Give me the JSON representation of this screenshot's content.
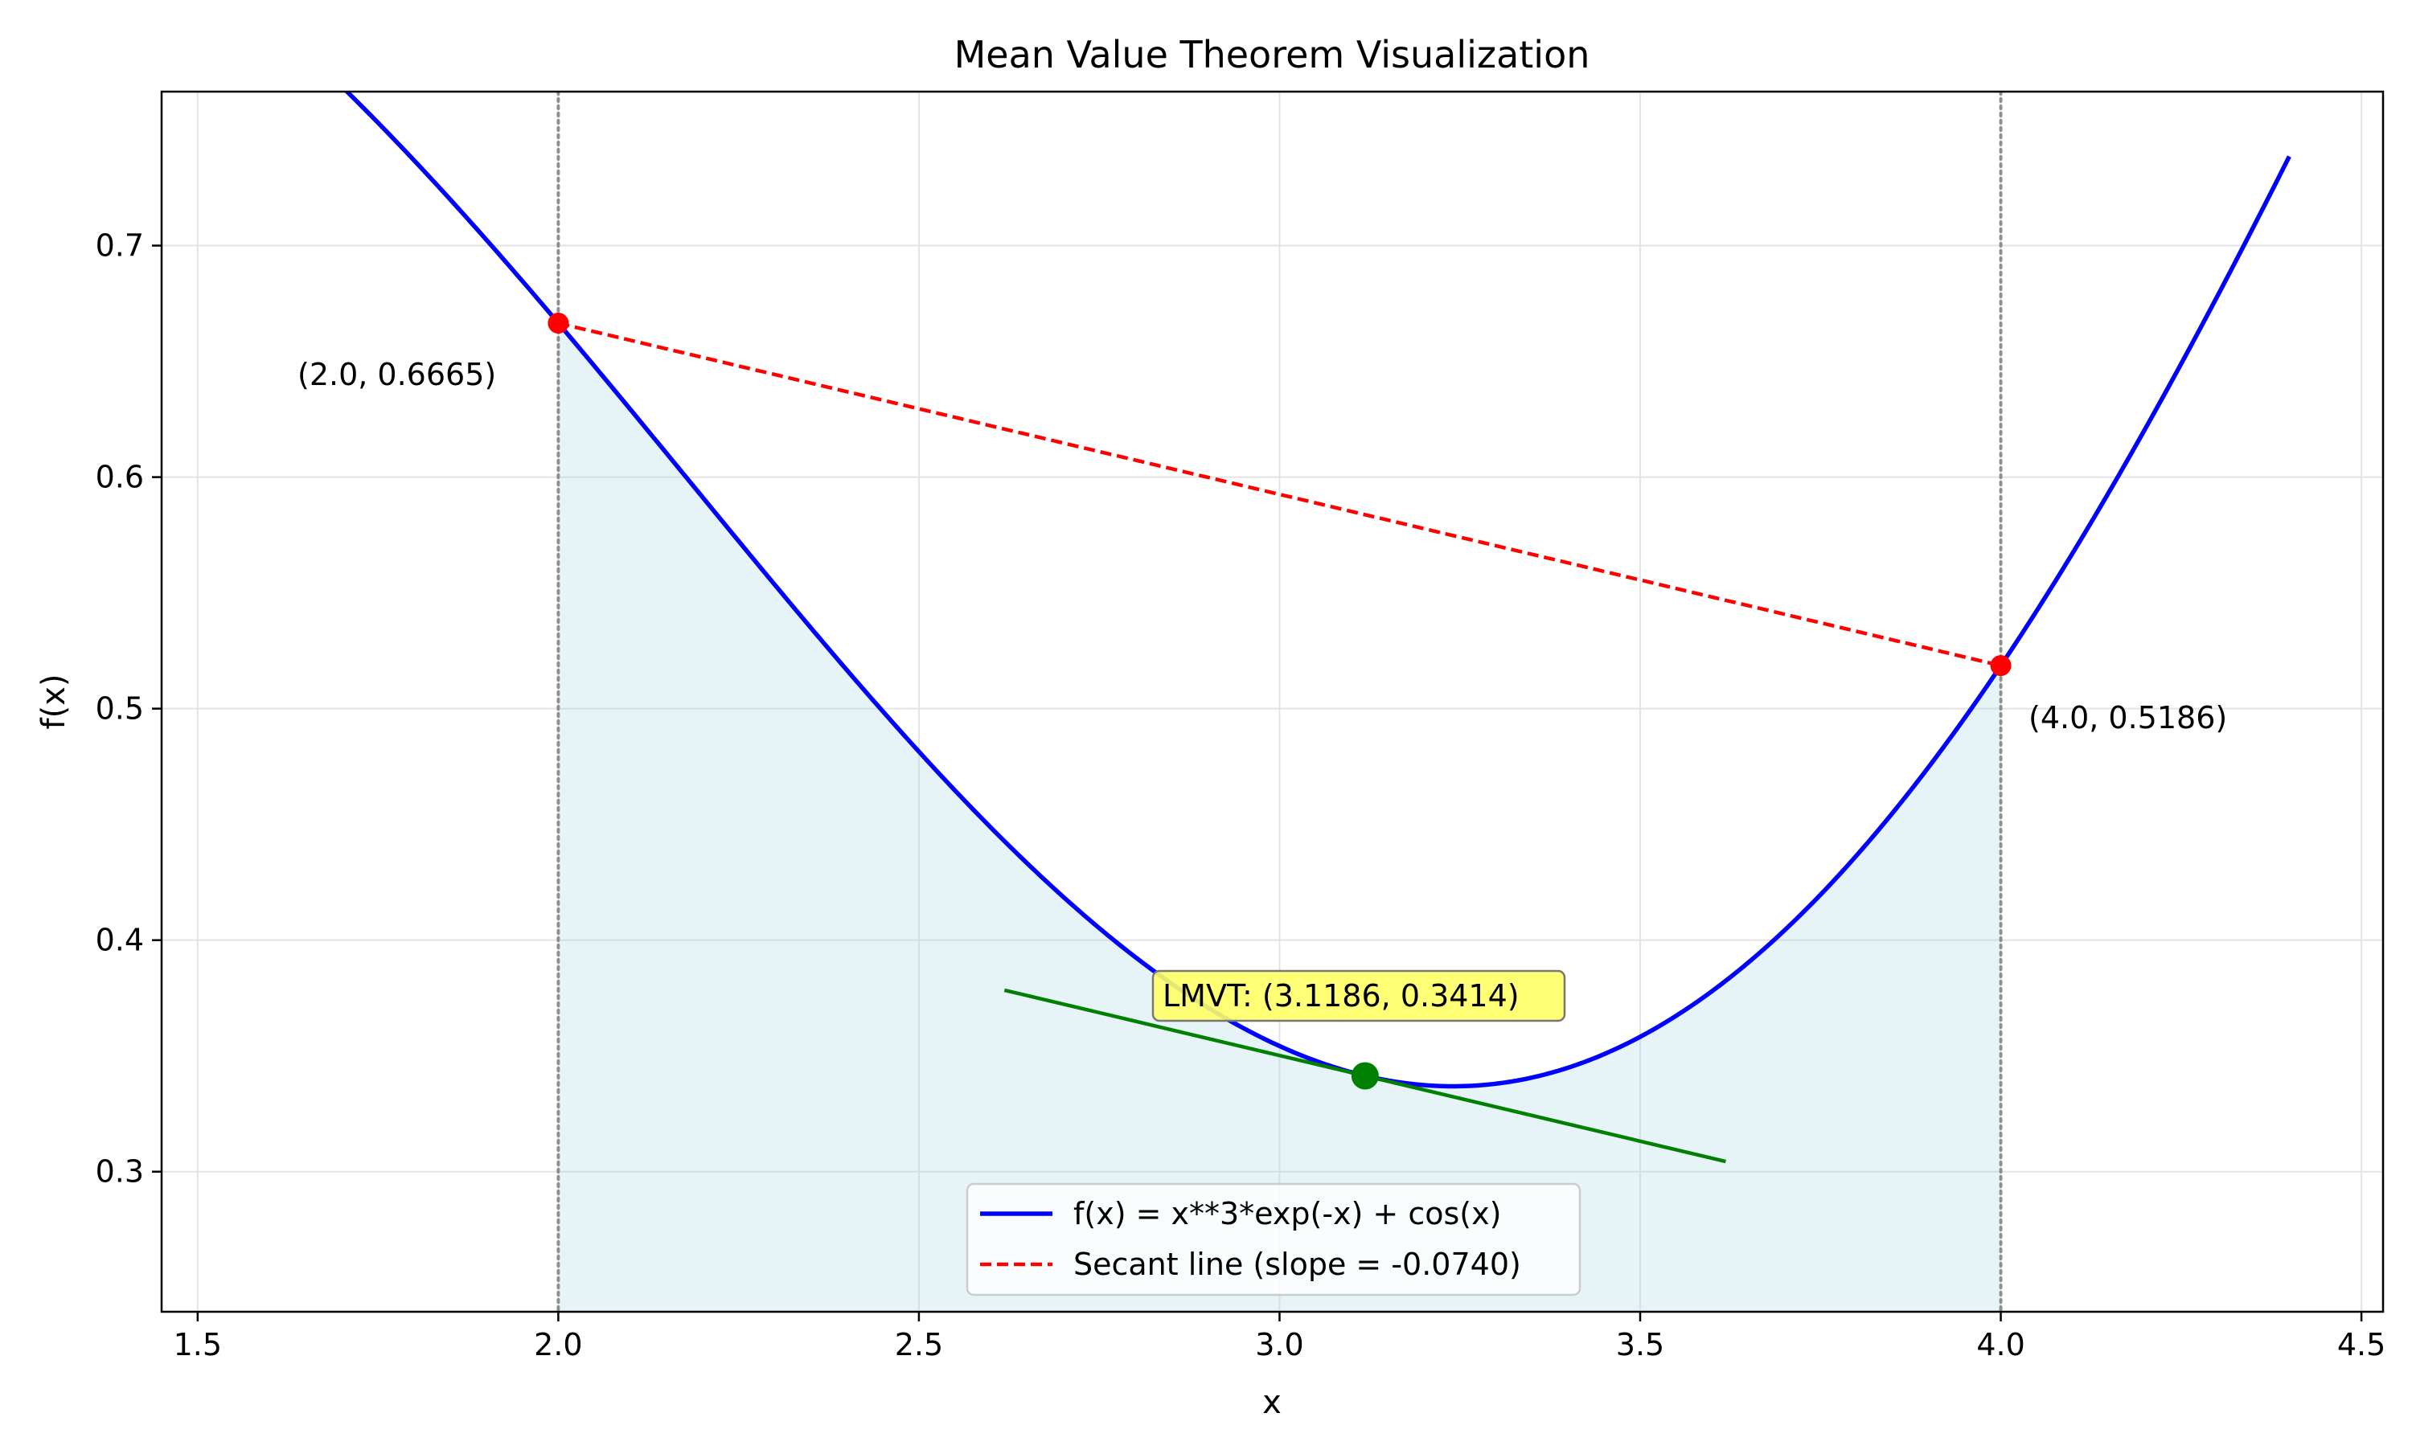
{
  "chart_data": {
    "type": "line",
    "title": "Mean Value Theorem Visualization",
    "xlabel": "x",
    "ylabel": "f(x)",
    "xlim": [
      1.45,
      4.53
    ],
    "ylim": [
      0.2395,
      0.7665
    ],
    "xticks": [
      1.5,
      2.0,
      2.5,
      3.0,
      3.5,
      4.0,
      4.5
    ],
    "xtick_labels": [
      "1.5",
      "2.0",
      "2.5",
      "3.0",
      "3.5",
      "4.0",
      "4.5"
    ],
    "yticks": [
      0.3,
      0.4,
      0.5,
      0.6,
      0.7
    ],
    "ytick_labels": [
      "0.3",
      "0.4",
      "0.5",
      "0.6",
      "0.7"
    ],
    "grid": true,
    "legend_position": "lower-center",
    "series": [
      {
        "name": "f(x) = x**3*exp(-x) + cos(x)",
        "style": "solid",
        "color": "#0000ff",
        "function": "x**3*exp(-x) + cos(x)",
        "domain": [
          1.45,
          4.4
        ]
      },
      {
        "name": "Secant line (slope = -0.0740)",
        "style": "dashed",
        "color": "#ff0000",
        "x": [
          2.0,
          4.0
        ],
        "y": [
          0.6665,
          0.5186
        ],
        "slope": -0.074
      },
      {
        "style": "solid",
        "color": "#008000",
        "x": [
          2.6186,
          3.6186
        ],
        "y": [
          0.3784,
          0.3044
        ]
      }
    ],
    "shaded_region": {
      "x_range": [
        2.0,
        4.0
      ],
      "color": "#add8e6"
    },
    "vertical_lines": [
      {
        "x": 2.0,
        "color": "#808080",
        "style": "dotted"
      },
      {
        "x": 4.0,
        "color": "#808080",
        "style": "dotted"
      }
    ],
    "points": [
      {
        "x": 2.0,
        "y": 0.6665,
        "color": "#ff0000",
        "label": "(2.0, 0.6665)"
      },
      {
        "x": 4.0,
        "y": 0.5186,
        "color": "#ff0000",
        "label": "(4.0, 0.5186)"
      },
      {
        "x": 3.1186,
        "y": 0.3414,
        "color": "#008000",
        "label": "LMVT: (3.1186, 0.3414)",
        "highlight_color": "#ffff66"
      }
    ]
  }
}
